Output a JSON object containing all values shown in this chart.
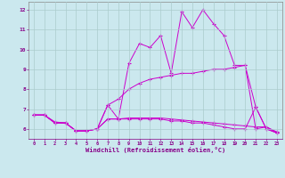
{
  "xlabel": "Windchill (Refroidissement éolien,°C)",
  "background_color": "#cbe8ee",
  "grid_color": "#aacccc",
  "line_color": "#cc00cc",
  "xmin": -0.5,
  "xmax": 23.5,
  "ymin": 5.5,
  "ymax": 12.4,
  "yticks": [
    6,
    7,
    8,
    9,
    10,
    11,
    12
  ],
  "xticks": [
    0,
    1,
    2,
    3,
    4,
    5,
    6,
    7,
    8,
    9,
    10,
    11,
    12,
    13,
    14,
    15,
    16,
    17,
    18,
    19,
    20,
    21,
    22,
    23
  ],
  "series": [
    [
      6.7,
      6.7,
      6.3,
      6.3,
      5.9,
      5.9,
      6.0,
      7.2,
      6.5,
      9.3,
      10.3,
      10.1,
      10.7,
      8.8,
      11.9,
      11.1,
      12.0,
      11.3,
      10.7,
      9.2,
      9.2,
      6.0,
      6.1,
      5.8
    ],
    [
      6.7,
      6.7,
      6.3,
      6.3,
      5.9,
      5.9,
      6.0,
      7.2,
      7.5,
      8.0,
      8.3,
      8.5,
      8.6,
      8.7,
      8.8,
      8.8,
      8.9,
      9.0,
      9.0,
      9.1,
      9.2,
      7.1,
      6.0,
      5.8
    ],
    [
      6.7,
      6.7,
      6.35,
      6.3,
      5.9,
      5.9,
      6.0,
      6.5,
      6.5,
      6.55,
      6.55,
      6.55,
      6.55,
      6.5,
      6.45,
      6.4,
      6.35,
      6.3,
      6.25,
      6.2,
      6.15,
      6.1,
      6.1,
      5.85
    ],
    [
      6.7,
      6.7,
      6.3,
      6.3,
      5.9,
      5.9,
      6.0,
      6.5,
      6.5,
      6.5,
      6.5,
      6.5,
      6.5,
      6.4,
      6.4,
      6.3,
      6.3,
      6.2,
      6.1,
      6.0,
      6.0,
      7.1,
      6.0,
      5.8
    ]
  ]
}
